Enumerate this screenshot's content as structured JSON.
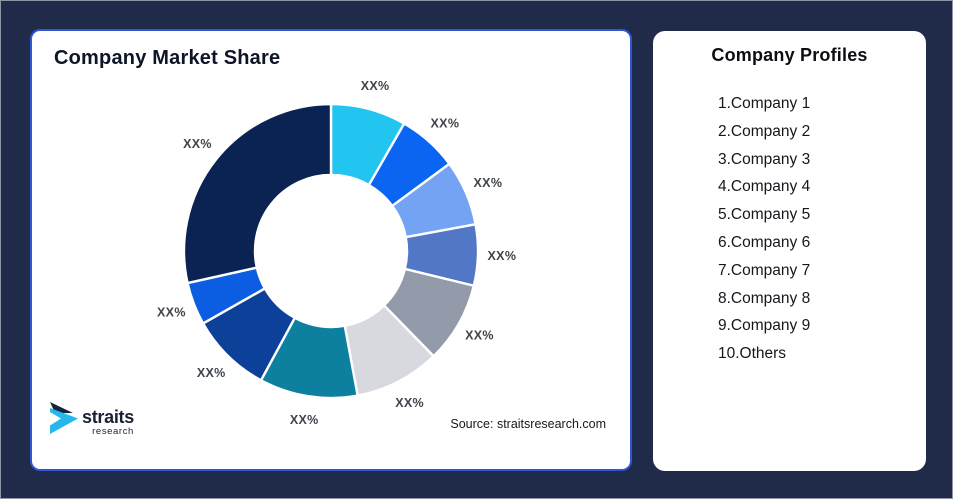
{
  "page": {
    "background": "#1f2b49",
    "panel_border_accent": "#3055d6"
  },
  "chart_panel": {
    "title": "Company Market Share",
    "source": "Source: straitsresearch.com"
  },
  "logo": {
    "name": "straits",
    "sub": "research",
    "mark_dark": "#15233e",
    "mark_cyan": "#25b8ea"
  },
  "profiles_panel": {
    "title": "Company Profiles",
    "items": [
      "1.Company 1",
      "2.Company 2",
      "3.Company 3",
      "4.Company 4",
      "5.Company 5",
      "6.Company 6",
      "7.Company 7",
      "8.Company 8",
      "9.Company 9",
      "10.Others"
    ]
  },
  "chart_data": {
    "type": "pie",
    "subtype": "donut",
    "title": "Company Market Share",
    "hole_ratio": 0.52,
    "start_angle_deg": 0,
    "direction": "clockwise",
    "legend": "none",
    "grid": false,
    "slice_stroke": "#ffffff",
    "segments": [
      {
        "label": "XX%",
        "pct": 8.3,
        "color": "#22c4f0"
      },
      {
        "label": "XX%",
        "pct": 6.6,
        "color": "#0a66f2"
      },
      {
        "label": "XX%",
        "pct": 7.2,
        "color": "#73a3f2"
      },
      {
        "label": "XX%",
        "pct": 6.7,
        "color": "#5277c6"
      },
      {
        "label": "XX%",
        "pct": 8.9,
        "color": "#939aa9"
      },
      {
        "label": "XX%",
        "pct": 9.4,
        "color": "#d7d9de"
      },
      {
        "label": "XX%",
        "pct": 10.8,
        "color": "#0d80a0"
      },
      {
        "label": "XX%",
        "pct": 8.9,
        "color": "#0d4098"
      },
      {
        "label": "XX%",
        "pct": 4.7,
        "color": "#0b5de2"
      },
      {
        "label": "XX%",
        "pct": 28.5,
        "color": "#0b2353"
      }
    ]
  }
}
